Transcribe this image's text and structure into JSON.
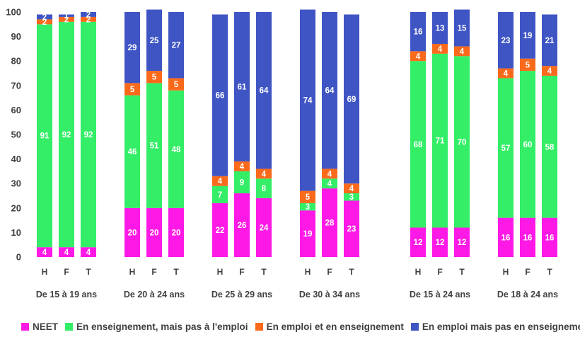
{
  "chart_data": {
    "type": "bar",
    "stacked": true,
    "ylim": [
      0,
      100
    ],
    "yticks": [
      0,
      10,
      20,
      30,
      40,
      50,
      60,
      70,
      80,
      90,
      100
    ],
    "grid": false,
    "legend_position": "bottom",
    "groups": [
      {
        "label": "De 15 à 19 ans",
        "bars": [
          {
            "label": "H",
            "values": [
              4,
              91,
              2,
              2
            ]
          },
          {
            "label": "F",
            "values": [
              4,
              92,
              2,
              1
            ]
          },
          {
            "label": "T",
            "values": [
              4,
              92,
              2,
              2
            ]
          }
        ]
      },
      {
        "label": "De 20 à 24 ans",
        "bars": [
          {
            "label": "H",
            "values": [
              20,
              46,
              5,
              29
            ]
          },
          {
            "label": "F",
            "values": [
              20,
              51,
              5,
              25
            ]
          },
          {
            "label": "T",
            "values": [
              20,
              48,
              5,
              27
            ]
          }
        ]
      },
      {
        "label": "De 25 à 29 ans",
        "bars": [
          {
            "label": "H",
            "values": [
              22,
              7,
              4,
              66
            ]
          },
          {
            "label": "F",
            "values": [
              26,
              9,
              4,
              61
            ]
          },
          {
            "label": "T",
            "values": [
              24,
              8,
              4,
              64
            ]
          }
        ]
      },
      {
        "label": "De 30 à 34 ans",
        "bars": [
          {
            "label": "H",
            "values": [
              19,
              3,
              5,
              74
            ]
          },
          {
            "label": "F",
            "values": [
              28,
              4,
              4,
              64
            ]
          },
          {
            "label": "T",
            "values": [
              23,
              3,
              4,
              69
            ]
          }
        ]
      },
      {
        "label": "De 15 à 24 ans",
        "bars": [
          {
            "label": "H",
            "values": [
              12,
              68,
              4,
              16
            ]
          },
          {
            "label": "F",
            "values": [
              12,
              71,
              4,
              13
            ]
          },
          {
            "label": "T",
            "values": [
              12,
              70,
              4,
              15
            ]
          }
        ]
      },
      {
        "label": "De 18 à 24 ans",
        "bars": [
          {
            "label": "H",
            "values": [
              16,
              57,
              4,
              23
            ]
          },
          {
            "label": "F",
            "values": [
              16,
              60,
              5,
              19
            ]
          },
          {
            "label": "T",
            "values": [
              16,
              58,
              4,
              21
            ]
          }
        ]
      }
    ],
    "series": [
      {
        "name": "NEET",
        "color": "#ff19e6"
      },
      {
        "name": "En enseignement, mais pas à l'emploi",
        "color": "#33ee66"
      },
      {
        "name": "En emploi et en enseignement",
        "color": "#fb6a1b"
      },
      {
        "name": "En emploi mais pas en enseignement",
        "color": "#4055c4"
      }
    ]
  }
}
